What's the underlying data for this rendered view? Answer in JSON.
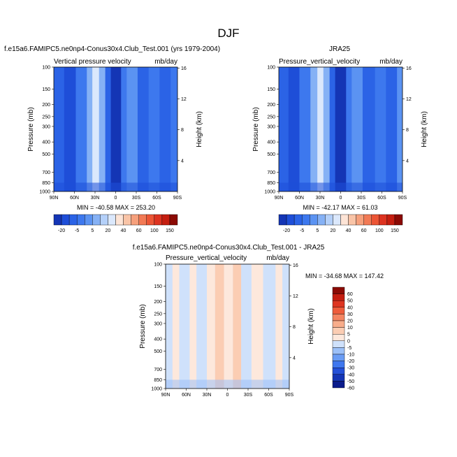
{
  "figure": {
    "title": "DJF",
    "model_case": "f.e15a6.FAMIPC5.ne0np4-Conus30x4.Club_Test.001 (yrs 1979-2004)",
    "obs_case": "JRA25",
    "diff_case": "f.e15a6.FAMIPC5.ne0np4-Conus30x4.Club_Test.001 - JRA25"
  },
  "colors": {
    "neg_scale": [
      "#0b1c8c",
      "#1435b5",
      "#1e4ed8",
      "#2b63e6",
      "#3d78ee",
      "#5b93f2",
      "#85b1f5",
      "#b4d0f9",
      "#dbe8fc"
    ],
    "pos_scale": [
      "#fde4d6",
      "#f9c4a7",
      "#f6a07c",
      "#f27a55",
      "#ec5535",
      "#dd3320",
      "#c51e10",
      "#8b0a04"
    ],
    "diff_neg": [
      "#0b1c8c",
      "#1435b5",
      "#2450d8",
      "#3f77ee",
      "#6a9cf4",
      "#9cc0f8",
      "#cfe1fb"
    ],
    "diff_pos": [
      "#fde8dc",
      "#fbcdb3",
      "#f8ad8b",
      "#f48562",
      "#ee5c3c",
      "#de3521",
      "#c41d10",
      "#8b0a04"
    ]
  },
  "chart_data": [
    {
      "type": "heatmap",
      "id": "model",
      "title": "Vertical pressure velocity",
      "units": "mb/day",
      "ylabel": "Pressure (mb)",
      "ylabel_right": "Height (km)",
      "x_ticks": [
        "90N",
        "60N",
        "30N",
        "0",
        "30S",
        "60S",
        "90S"
      ],
      "y_ticks": [
        "100",
        "150",
        "200",
        "250",
        "300",
        "400",
        "500",
        "700",
        "850",
        "1000"
      ],
      "y_right_ticks": [
        "16",
        "12",
        "8",
        "4"
      ],
      "stats": "MIN = -40.58   MAX = 253.20",
      "colorbar_labels": [
        "-20",
        "-5",
        "5",
        "20",
        "40",
        "60",
        "100",
        "150"
      ],
      "bands": [
        {
          "lat0": 90,
          "lat1": 75,
          "level": 3
        },
        {
          "lat0": 75,
          "lat1": 58,
          "level": 2
        },
        {
          "lat0": 58,
          "lat1": 42,
          "level": 4
        },
        {
          "lat0": 42,
          "lat1": 34,
          "level": 6
        },
        {
          "lat0": 34,
          "lat1": 24,
          "level": 8
        },
        {
          "lat0": 24,
          "lat1": 15,
          "level": 6
        },
        {
          "lat0": 15,
          "lat1": 7,
          "level": 3
        },
        {
          "lat0": 7,
          "lat1": -8,
          "level": 1
        },
        {
          "lat0": -8,
          "lat1": -16,
          "level": 4
        },
        {
          "lat0": -16,
          "lat1": -32,
          "level": 5
        },
        {
          "lat0": -32,
          "lat1": -48,
          "level": 3
        },
        {
          "lat0": -48,
          "lat1": -64,
          "level": 4
        },
        {
          "lat0": -64,
          "lat1": -80,
          "level": 3
        },
        {
          "lat0": -80,
          "lat1": -90,
          "level": 4
        }
      ]
    },
    {
      "type": "heatmap",
      "id": "obs",
      "title": "Pressure_vertical_velocity",
      "units": "mb/day",
      "ylabel": "Pressure (mb)",
      "ylabel_right": "Height (km)",
      "x_ticks": [
        "90N",
        "60N",
        "30N",
        "0",
        "30S",
        "60S",
        "90S"
      ],
      "y_ticks": [
        "100",
        "150",
        "200",
        "250",
        "300",
        "400",
        "500",
        "700",
        "850",
        "1000"
      ],
      "y_right_ticks": [
        "16",
        "12",
        "8",
        "4"
      ],
      "stats": "MIN = -42.17   MAX =  61.03",
      "colorbar_labels": [
        "-20",
        "-5",
        "5",
        "20",
        "40",
        "60",
        "100",
        "150"
      ],
      "bands": [
        {
          "lat0": 90,
          "lat1": 76,
          "level": 3
        },
        {
          "lat0": 76,
          "lat1": 60,
          "level": 2
        },
        {
          "lat0": 60,
          "lat1": 44,
          "level": 4
        },
        {
          "lat0": 44,
          "lat1": 34,
          "level": 6
        },
        {
          "lat0": 34,
          "lat1": 25,
          "level": 8
        },
        {
          "lat0": 25,
          "lat1": 16,
          "level": 6
        },
        {
          "lat0": 16,
          "lat1": 8,
          "level": 3
        },
        {
          "lat0": 8,
          "lat1": -8,
          "level": 1
        },
        {
          "lat0": -8,
          "lat1": -16,
          "level": 4
        },
        {
          "lat0": -16,
          "lat1": -32,
          "level": 5
        },
        {
          "lat0": -32,
          "lat1": -50,
          "level": 3
        },
        {
          "lat0": -50,
          "lat1": -66,
          "level": 4
        },
        {
          "lat0": -66,
          "lat1": -82,
          "level": 3
        },
        {
          "lat0": -82,
          "lat1": -90,
          "level": 5
        }
      ]
    },
    {
      "type": "heatmap",
      "id": "diff",
      "title": "Pressure_vertical_velocity",
      "units": "mb/day",
      "ylabel": "Pressure (mb)",
      "ylabel_right": "Height (km)",
      "x_ticks": [
        "90N",
        "60N",
        "30N",
        "0",
        "30S",
        "60S",
        "90S"
      ],
      "y_ticks": [
        "100",
        "150",
        "200",
        "250",
        "300",
        "400",
        "500",
        "700",
        "850",
        "1000"
      ],
      "y_right_ticks": [
        "16",
        "12",
        "8",
        "4"
      ],
      "stats": "MIN = -34.68   MAX = 147.42",
      "colorbar_labels": [
        "60",
        "50",
        "40",
        "30",
        "20",
        "10",
        "5",
        "0",
        "-5",
        "-10",
        "-20",
        "-30",
        "-40",
        "-50",
        "-60"
      ],
      "bands": [
        {
          "lat0": 90,
          "lat1": 80,
          "level": 6
        },
        {
          "lat0": 80,
          "lat1": 70,
          "level": 7
        },
        {
          "lat0": 70,
          "lat1": 55,
          "level": 6
        },
        {
          "lat0": 55,
          "lat1": 45,
          "level": 7
        },
        {
          "lat0": 45,
          "lat1": 30,
          "level": 6
        },
        {
          "lat0": 30,
          "lat1": 18,
          "level": 7
        },
        {
          "lat0": 18,
          "lat1": 5,
          "level": 8
        },
        {
          "lat0": 5,
          "lat1": -8,
          "level": 7
        },
        {
          "lat0": -8,
          "lat1": -20,
          "level": 8
        },
        {
          "lat0": -20,
          "lat1": -35,
          "level": 6
        },
        {
          "lat0": -35,
          "lat1": -52,
          "level": 7
        },
        {
          "lat0": -52,
          "lat1": -70,
          "level": 6
        },
        {
          "lat0": -70,
          "lat1": -80,
          "level": 7
        },
        {
          "lat0": -80,
          "lat1": -90,
          "level": 6
        }
      ]
    }
  ]
}
